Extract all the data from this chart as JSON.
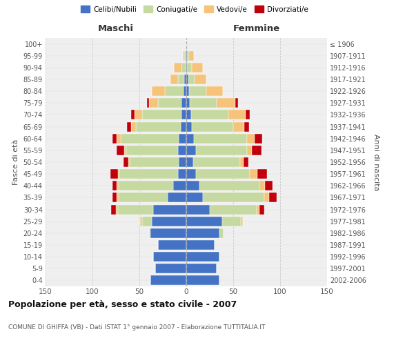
{
  "age_groups": [
    "0-4",
    "5-9",
    "10-14",
    "15-19",
    "20-24",
    "25-29",
    "30-34",
    "35-39",
    "40-44",
    "45-49",
    "50-54",
    "55-59",
    "60-64",
    "65-69",
    "70-74",
    "75-79",
    "80-84",
    "85-89",
    "90-94",
    "95-99",
    "100+"
  ],
  "birth_years": [
    "2002-2006",
    "1997-2001",
    "1992-1996",
    "1987-1991",
    "1982-1986",
    "1977-1981",
    "1972-1976",
    "1967-1971",
    "1962-1966",
    "1957-1961",
    "1952-1956",
    "1947-1951",
    "1942-1946",
    "1937-1941",
    "1932-1936",
    "1927-1931",
    "1922-1926",
    "1917-1921",
    "1912-1916",
    "1907-1911",
    "≤ 1906"
  ],
  "male_celibi": [
    38,
    33,
    35,
    30,
    38,
    37,
    35,
    20,
    14,
    9,
    8,
    9,
    8,
    6,
    5,
    5,
    3,
    2,
    1,
    1,
    0
  ],
  "male_coniugati": [
    0,
    0,
    0,
    0,
    2,
    10,
    38,
    52,
    58,
    62,
    52,
    55,
    62,
    48,
    42,
    25,
    20,
    7,
    4,
    1,
    0
  ],
  "male_vedovi": [
    0,
    0,
    0,
    0,
    0,
    2,
    2,
    2,
    2,
    2,
    2,
    2,
    4,
    5,
    8,
    10,
    14,
    8,
    8,
    2,
    0
  ],
  "male_divorziati": [
    0,
    0,
    0,
    0,
    0,
    0,
    5,
    5,
    5,
    8,
    5,
    8,
    5,
    4,
    4,
    2,
    0,
    0,
    0,
    0,
    0
  ],
  "fem_nubili": [
    35,
    32,
    35,
    30,
    35,
    38,
    25,
    18,
    14,
    10,
    7,
    10,
    8,
    6,
    5,
    4,
    3,
    2,
    1,
    1,
    0
  ],
  "fem_coniugate": [
    0,
    0,
    0,
    0,
    5,
    20,
    50,
    65,
    64,
    58,
    50,
    55,
    57,
    44,
    40,
    28,
    18,
    7,
    5,
    2,
    0
  ],
  "fem_vedove": [
    0,
    0,
    0,
    0,
    0,
    2,
    3,
    5,
    6,
    8,
    4,
    5,
    8,
    12,
    18,
    20,
    18,
    12,
    12,
    5,
    0
  ],
  "fem_divorziate": [
    0,
    0,
    0,
    0,
    0,
    0,
    5,
    8,
    8,
    10,
    5,
    10,
    8,
    5,
    5,
    3,
    0,
    0,
    0,
    0,
    0
  ],
  "colors": {
    "celibi_nubili": "#4472C4",
    "coniugati": "#C5D9A0",
    "vedovi": "#F5C47A",
    "divorziati": "#C0000C"
  },
  "xlim": 150,
  "title": "Popolazione per età, sesso e stato civile - 2007",
  "subtitle": "COMUNE DI GHIFFA (VB) - Dati ISTAT 1° gennaio 2007 - Elaborazione TUTTITALIA.IT",
  "xlabel_left": "Maschi",
  "xlabel_right": "Femmine",
  "ylabel_left": "Fasce di età",
  "ylabel_right": "Anni di nascita",
  "legend_labels": [
    "Celibi/Nubili",
    "Coniugati/e",
    "Vedovi/e",
    "Divorziati/e"
  ],
  "bg_color": "#ffffff",
  "plot_bg": "#efefef",
  "grid_color": "#cccccc",
  "xticks": [
    -150,
    -100,
    -50,
    0,
    50,
    100,
    150
  ],
  "xtick_labels": [
    "150",
    "100",
    "50",
    "0",
    "50",
    "100",
    "150"
  ]
}
